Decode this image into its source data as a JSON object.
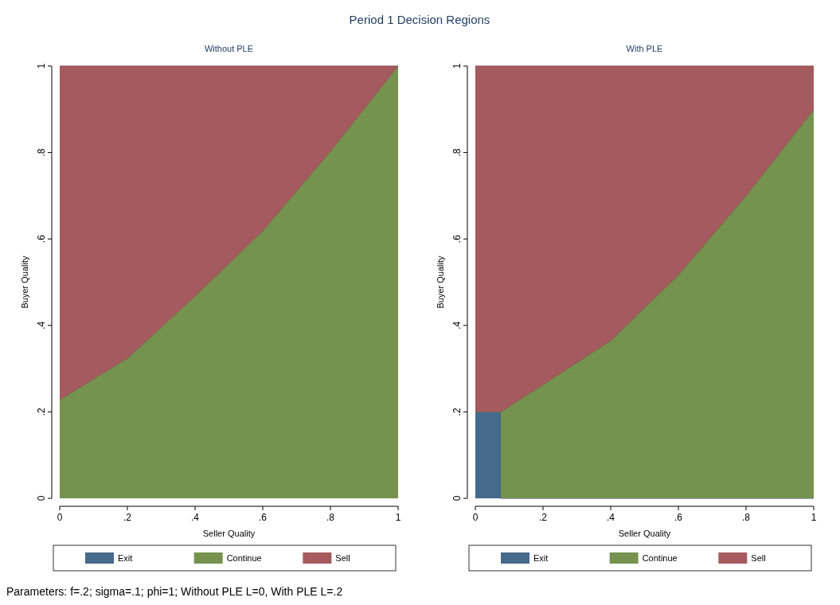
{
  "chart_data": [
    {
      "type": "area",
      "stacked": true,
      "title": "Without PLE",
      "xlabel": "Seller Quality",
      "ylabel": "Buyer Quality",
      "annotations": [
        "Period 1 Decision Regions",
        "Parameters: f=.2; sigma=.1; phi=1; Without PLE L=0, With PLE L=.2"
      ],
      "x": [
        0,
        0.2,
        0.4,
        0.6,
        0.8,
        1
      ],
      "series": [
        {
          "name": "Exit",
          "color": "#456a8c",
          "values": [
            null,
            null,
            null,
            null,
            null,
            null
          ]
        },
        {
          "name": "Continue",
          "color": "#76924f",
          "values": [
            0.228,
            0.324,
            0.468,
            0.619,
            0.803,
            1
          ]
        },
        {
          "name": "Sell",
          "color": "#a45a5e",
          "values": [
            0.772,
            0.676,
            0.532,
            0.381,
            0.197,
            0
          ]
        }
      ],
      "xlim": [
        0,
        1
      ],
      "ylim": [
        0,
        1
      ],
      "xticks": [
        {
          "value": 0,
          "label": "0"
        },
        {
          "value": 0.2,
          "label": ".2"
        },
        {
          "value": 0.4,
          "label": ".4"
        },
        {
          "value": 0.6,
          "label": ".6"
        },
        {
          "value": 0.8,
          "label": ".8"
        },
        {
          "value": 1,
          "label": "1"
        }
      ],
      "yticks": [
        {
          "value": 0,
          "label": "0"
        },
        {
          "value": 0.2,
          "label": ".2"
        },
        {
          "value": 0.4,
          "label": ".4"
        },
        {
          "value": 0.6,
          "label": ".6"
        },
        {
          "value": 0.8,
          "label": ".8"
        },
        {
          "value": 1,
          "label": "1"
        }
      ],
      "legend": "bottom"
    },
    {
      "type": "area",
      "stacked": true,
      "title": "With PLE",
      "xlabel": "Seller Quality",
      "ylabel": "Buyer Quality",
      "x": [
        0,
        0.075,
        0.075,
        0.2,
        0.4,
        0.6,
        0.8,
        1
      ],
      "series": [
        {
          "name": "Exit",
          "color": "#456a8c",
          "values": [
            0.2,
            0.2,
            0,
            0,
            0,
            0,
            0,
            0
          ]
        },
        {
          "name": "Continue",
          "color": "#76924f",
          "values": [
            0,
            0,
            0.2,
            0.263,
            0.365,
            0.517,
            0.7,
            0.9
          ]
        },
        {
          "name": "Sell",
          "color": "#a45a5e",
          "values": [
            0.8,
            0.8,
            0.8,
            0.737,
            0.635,
            0.483,
            0.3,
            0.1
          ]
        }
      ],
      "xlim": [
        0,
        1
      ],
      "ylim": [
        0,
        1
      ],
      "xticks": [
        {
          "value": 0,
          "label": "0"
        },
        {
          "value": 0.2,
          "label": ".2"
        },
        {
          "value": 0.4,
          "label": ".4"
        },
        {
          "value": 0.6,
          "label": ".6"
        },
        {
          "value": 0.8,
          "label": ".8"
        },
        {
          "value": 1,
          "label": "1"
        }
      ],
      "yticks": [
        {
          "value": 0,
          "label": "0"
        },
        {
          "value": 0.2,
          "label": ".2"
        },
        {
          "value": 0.4,
          "label": ".4"
        },
        {
          "value": 0.6,
          "label": ".6"
        },
        {
          "value": 0.8,
          "label": ".8"
        },
        {
          "value": 1,
          "label": "1"
        }
      ],
      "legend": "bottom"
    }
  ]
}
